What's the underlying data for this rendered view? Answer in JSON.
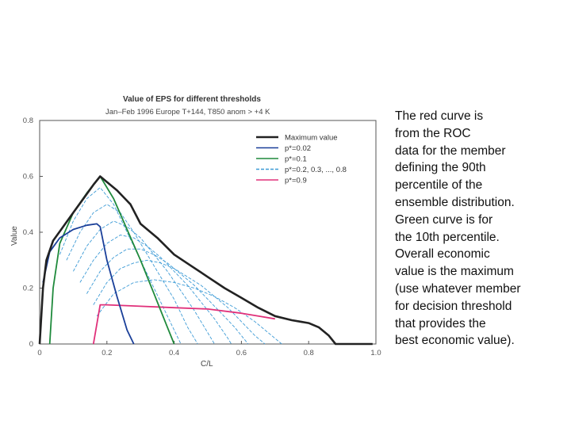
{
  "chart_data": {
    "type": "line",
    "title": "Value of EPS for different thresholds",
    "subtitle": "Jan–Feb 1996 Europe T+144, T850 anom > +4 K",
    "xlabel": "C/L",
    "ylabel": "Value",
    "xlim": [
      0,
      1.0
    ],
    "ylim": [
      0,
      0.8
    ],
    "x_ticks": [
      "0",
      "0.2",
      "0.4",
      "0.6",
      "0.8",
      "1.0"
    ],
    "y_ticks": [
      "0",
      "0.2",
      "0.4",
      "0.6",
      "0.8"
    ],
    "grid": false,
    "legend_position": "top-right",
    "series": [
      {
        "name": "Maximum value",
        "color": "#222222",
        "style": "solid",
        "x": [
          0,
          0.01,
          0.02,
          0.04,
          0.07,
          0.1,
          0.13,
          0.16,
          0.18,
          0.2,
          0.23,
          0.27,
          0.3,
          0.35,
          0.4,
          0.45,
          0.5,
          0.55,
          0.6,
          0.65,
          0.7,
          0.75,
          0.8,
          0.83,
          0.86,
          0.88,
          0.9,
          0.95,
          0.99
        ],
        "y": [
          0,
          0.2,
          0.3,
          0.37,
          0.42,
          0.47,
          0.52,
          0.57,
          0.6,
          0.58,
          0.55,
          0.5,
          0.43,
          0.38,
          0.32,
          0.28,
          0.24,
          0.2,
          0.165,
          0.13,
          0.1,
          0.085,
          0.075,
          0.06,
          0.03,
          0,
          0,
          0,
          0
        ]
      },
      {
        "name": "p*=0.02",
        "color": "#1a3f99",
        "style": "solid",
        "x": [
          0.01,
          0.03,
          0.06,
          0.1,
          0.14,
          0.17,
          0.18,
          0.2,
          0.23,
          0.26,
          0.28
        ],
        "y": [
          0.22,
          0.33,
          0.38,
          0.41,
          0.425,
          0.43,
          0.42,
          0.3,
          0.17,
          0.05,
          0
        ]
      },
      {
        "name": "p*=0.1",
        "color": "#1f8a3c",
        "style": "solid",
        "x": [
          0.03,
          0.04,
          0.06,
          0.1,
          0.14,
          0.18,
          0.22,
          0.26,
          0.3,
          0.34,
          0.38,
          0.4
        ],
        "y": [
          0,
          0.2,
          0.36,
          0.47,
          0.54,
          0.6,
          0.52,
          0.41,
          0.3,
          0.18,
          0.06,
          0
        ]
      },
      {
        "name": "p*=0.2, 0.3, ..., 0.8",
        "color": "#3d9bd6",
        "style": "dashed"
      },
      {
        "name": "p*=0.9",
        "color": "#e0307a",
        "style": "solid",
        "x": [
          0.16,
          0.18,
          0.2,
          0.3,
          0.4,
          0.5,
          0.6,
          0.65,
          0.7
        ],
        "y": [
          0,
          0.14,
          0.14,
          0.135,
          0.13,
          0.125,
          0.11,
          0.1,
          0.09
        ]
      }
    ],
    "threshold_curves": [
      {
        "label": "p*=0.2",
        "x": [
          0.06,
          0.1,
          0.14,
          0.18,
          0.22,
          0.26,
          0.3,
          0.34,
          0.38,
          0.42
        ],
        "y": [
          0.32,
          0.44,
          0.52,
          0.56,
          0.5,
          0.4,
          0.3,
          0.2,
          0.1,
          0
        ]
      },
      {
        "label": "p*=0.3",
        "x": [
          0.08,
          0.12,
          0.16,
          0.2,
          0.24,
          0.28,
          0.32,
          0.36,
          0.4,
          0.44,
          0.47
        ],
        "y": [
          0.3,
          0.4,
          0.47,
          0.5,
          0.47,
          0.4,
          0.32,
          0.24,
          0.16,
          0.06,
          0
        ]
      },
      {
        "label": "p*=0.4",
        "x": [
          0.1,
          0.14,
          0.18,
          0.22,
          0.26,
          0.3,
          0.34,
          0.38,
          0.42,
          0.46,
          0.5,
          0.52
        ],
        "y": [
          0.26,
          0.35,
          0.41,
          0.44,
          0.42,
          0.38,
          0.32,
          0.26,
          0.19,
          0.12,
          0.04,
          0
        ]
      },
      {
        "label": "p*=0.5",
        "x": [
          0.12,
          0.16,
          0.2,
          0.24,
          0.28,
          0.32,
          0.36,
          0.4,
          0.44,
          0.48,
          0.52,
          0.56,
          0.57
        ],
        "y": [
          0.22,
          0.3,
          0.36,
          0.39,
          0.38,
          0.35,
          0.31,
          0.26,
          0.21,
          0.15,
          0.09,
          0.02,
          0
        ]
      },
      {
        "label": "p*=0.6",
        "x": [
          0.14,
          0.18,
          0.22,
          0.26,
          0.3,
          0.34,
          0.38,
          0.42,
          0.46,
          0.5,
          0.54,
          0.58,
          0.62
        ],
        "y": [
          0.18,
          0.26,
          0.31,
          0.34,
          0.34,
          0.32,
          0.29,
          0.25,
          0.21,
          0.16,
          0.11,
          0.06,
          0
        ]
      },
      {
        "label": "p*=0.7",
        "x": [
          0.16,
          0.2,
          0.24,
          0.28,
          0.32,
          0.36,
          0.4,
          0.44,
          0.48,
          0.52,
          0.56,
          0.6,
          0.64,
          0.67
        ],
        "y": [
          0.14,
          0.22,
          0.27,
          0.29,
          0.3,
          0.29,
          0.27,
          0.24,
          0.21,
          0.17,
          0.13,
          0.08,
          0.03,
          0
        ]
      },
      {
        "label": "p*=0.8",
        "x": [
          0.17,
          0.22,
          0.28,
          0.34,
          0.4,
          0.46,
          0.52,
          0.58,
          0.64,
          0.7,
          0.72
        ],
        "y": [
          0.1,
          0.18,
          0.22,
          0.23,
          0.22,
          0.2,
          0.17,
          0.13,
          0.08,
          0.02,
          0
        ]
      }
    ]
  },
  "caption": {
    "lines": [
      "The red curve is",
      "from the ROC",
      "data for the member",
      "defining the 90th",
      "percentile of the",
      "ensemble distribution.",
      "Green curve is for",
      "the 10th percentile.",
      "Overall economic",
      "value is the maximum",
      "(use whatever member",
      "for decision threshold",
      "that provides the",
      "best economic value)."
    ]
  }
}
